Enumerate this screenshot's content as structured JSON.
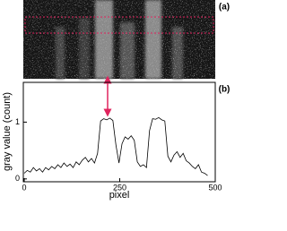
{
  "chart_data": {
    "type": "line",
    "panel_labels": [
      "(a)",
      "(b)"
    ],
    "xlabel": "pixel",
    "ylabel": "gray value (count)",
    "xlim": [
      0,
      500
    ],
    "xticks": [
      0,
      250,
      500
    ],
    "ylim": [
      -0.05,
      1.7
    ],
    "yticks": [
      0,
      1
    ],
    "color": "#000000",
    "x": [
      0,
      8,
      16,
      24,
      32,
      40,
      48,
      56,
      64,
      72,
      80,
      88,
      96,
      104,
      112,
      120,
      128,
      136,
      144,
      152,
      160,
      168,
      176,
      184,
      192,
      200,
      208,
      216,
      224,
      232,
      240,
      248,
      256,
      264,
      272,
      280,
      288,
      296,
      304,
      312,
      320,
      328,
      336,
      344,
      352,
      360,
      368,
      376,
      384,
      392,
      400,
      408,
      416,
      424,
      432,
      440,
      448,
      456,
      464,
      472,
      480
    ],
    "values": [
      0.1,
      0.15,
      0.12,
      0.2,
      0.14,
      0.18,
      0.12,
      0.2,
      0.16,
      0.22,
      0.18,
      0.25,
      0.2,
      0.28,
      0.22,
      0.26,
      0.2,
      0.3,
      0.25,
      0.33,
      0.38,
      0.3,
      0.36,
      0.28,
      0.45,
      1.02,
      1.06,
      1.04,
      1.07,
      1.03,
      0.6,
      0.28,
      0.62,
      0.74,
      0.7,
      0.76,
      0.68,
      0.3,
      0.22,
      0.25,
      0.2,
      0.85,
      1.06,
      1.05,
      1.08,
      1.04,
      1.02,
      0.4,
      0.3,
      0.42,
      0.48,
      0.38,
      0.45,
      0.32,
      0.28,
      0.22,
      0.18,
      0.25,
      0.12,
      0.1,
      0.06
    ]
  }
}
